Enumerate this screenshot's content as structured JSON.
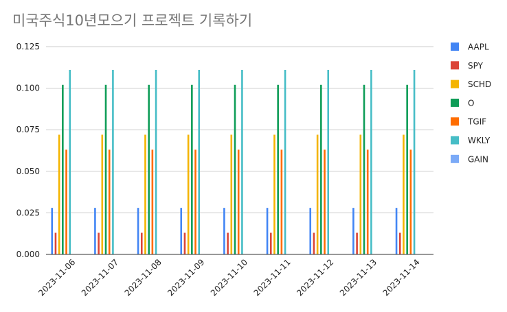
{
  "chart_data": {
    "type": "bar",
    "title": "미국주식10년모으기 프로젝트 기록하기",
    "xlabel": "",
    "ylabel": "",
    "ylim": [
      0,
      0.125
    ],
    "y_ticks": [
      "0.000",
      "0.025",
      "0.050",
      "0.075",
      "0.100",
      "0.125"
    ],
    "categories": [
      "2023-11-06",
      "2023-11-07",
      "2023-11-08",
      "2023-11-09",
      "2023-11-10",
      "2023-11-11",
      "2023-11-12",
      "2023-11-13",
      "2023-11-14"
    ],
    "grid": true,
    "legend_position": "right",
    "series": [
      {
        "name": "AAPL",
        "color": "#4285f4",
        "values": [
          0.028,
          0.028,
          0.028,
          0.028,
          0.028,
          0.028,
          0.028,
          0.028,
          0.028
        ]
      },
      {
        "name": "SPY",
        "color": "#db4437",
        "values": [
          0.013,
          0.013,
          0.013,
          0.013,
          0.013,
          0.013,
          0.013,
          0.013,
          0.013
        ]
      },
      {
        "name": "SCHD",
        "color": "#f4b400",
        "values": [
          0.072,
          0.072,
          0.072,
          0.072,
          0.072,
          0.072,
          0.072,
          0.072,
          0.072
        ]
      },
      {
        "name": "O",
        "color": "#0f9d58",
        "values": [
          0.102,
          0.102,
          0.102,
          0.102,
          0.102,
          0.102,
          0.102,
          0.102,
          0.102
        ]
      },
      {
        "name": "TGIF",
        "color": "#ff6d01",
        "values": [
          0.063,
          0.063,
          0.063,
          0.063,
          0.063,
          0.063,
          0.063,
          0.063,
          0.063
        ]
      },
      {
        "name": "WKLY",
        "color": "#46bdc6",
        "values": [
          0.111,
          0.111,
          0.111,
          0.111,
          0.111,
          0.111,
          0.111,
          0.111,
          0.111
        ]
      },
      {
        "name": "GAIN",
        "color": "#7baaf7",
        "values": [
          0,
          0,
          0,
          0,
          0,
          0,
          0,
          0,
          0
        ]
      }
    ]
  }
}
